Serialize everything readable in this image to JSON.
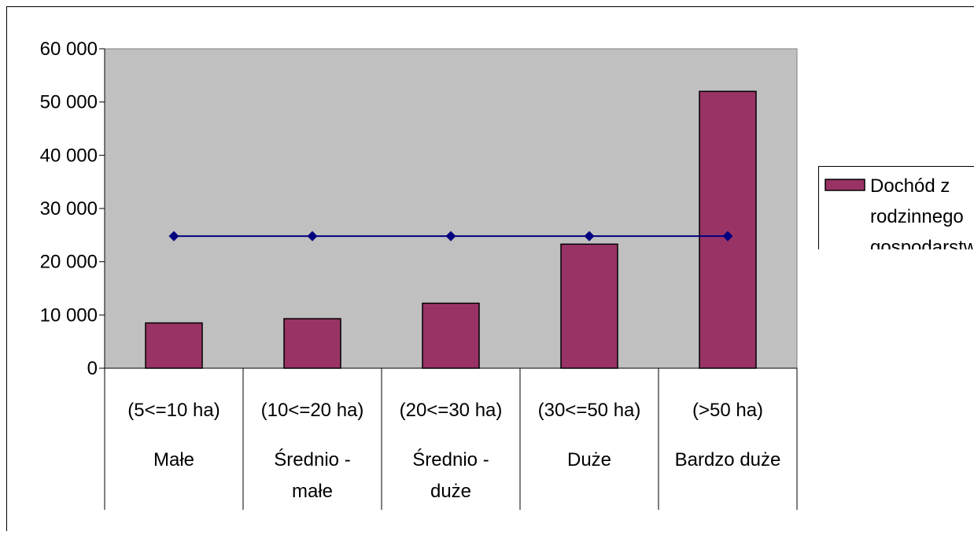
{
  "chart_data": {
    "type": "bar",
    "categories": [
      {
        "range": "(5<=10 ha)",
        "label_lines": [
          "Małe"
        ]
      },
      {
        "range": "(10<=20 ha)",
        "label_lines": [
          "Średnio -",
          "małe"
        ]
      },
      {
        "range": "(20<=30 ha)",
        "label_lines": [
          "Średnio -",
          "duże"
        ]
      },
      {
        "range": "(30<=50 ha)",
        "label_lines": [
          "Duże"
        ]
      },
      {
        "range": "(>50 ha)",
        "label_lines": [
          "Bardzo duże"
        ]
      }
    ],
    "series": [
      {
        "name": "Dochód z rodzinnego gospodarstwa",
        "kind": "bar",
        "color": "#993366",
        "values": [
          8500,
          9300,
          12200,
          23300,
          52000
        ]
      },
      {
        "kind": "line",
        "color": "#000080",
        "values": [
          24800,
          24800,
          24800,
          24800,
          24800
        ]
      }
    ],
    "legend": {
      "lines": [
        "Dochód z",
        "rodzinnego",
        "gospodarstwa"
      ],
      "placement": "right"
    },
    "ylim": [
      0,
      60000
    ],
    "yticks": [
      0,
      10000,
      20000,
      30000,
      40000,
      50000,
      60000
    ],
    "ytick_labels": [
      "0",
      "10 000",
      "20 000",
      "30 000",
      "40 000",
      "50 000",
      "60 000"
    ],
    "title": "",
    "xlabel": "",
    "ylabel": "",
    "plot_background": "#c0c0c0",
    "grid": false
  }
}
